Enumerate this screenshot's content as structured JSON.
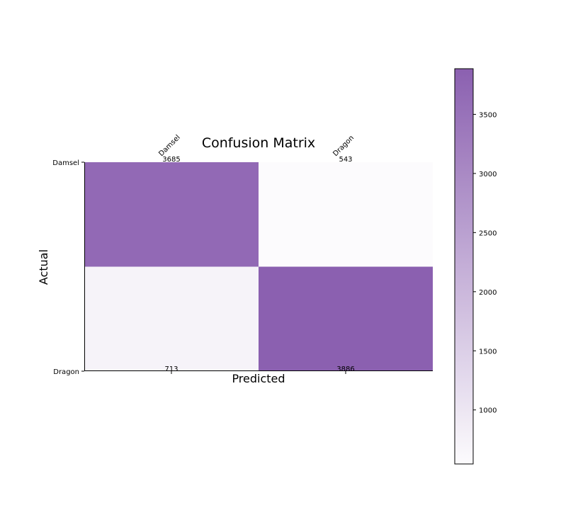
{
  "chart_data": {
    "type": "heatmap",
    "title": "Confusion Matrix",
    "xlabel": "Predicted",
    "ylabel": "Actual",
    "x_categories": [
      "Damsel",
      "Dragon"
    ],
    "y_categories": [
      "Damsel",
      "Dragon"
    ],
    "values": [
      [
        3685,
        543
      ],
      [
        713,
        3886
      ]
    ],
    "cell_labels": [
      "3685",
      "543",
      "713",
      "3886"
    ],
    "colormap": "Purples",
    "colors": {
      "low": "#fcfbfd",
      "high": "#8b60b0"
    },
    "colorbar": {
      "range": [
        543,
        3886
      ],
      "ticks": [
        1000,
        1500,
        2000,
        2500,
        3000,
        3500
      ],
      "tick_labels": [
        "1000",
        "1500",
        "2000",
        "2500",
        "3000",
        "3500"
      ]
    }
  }
}
